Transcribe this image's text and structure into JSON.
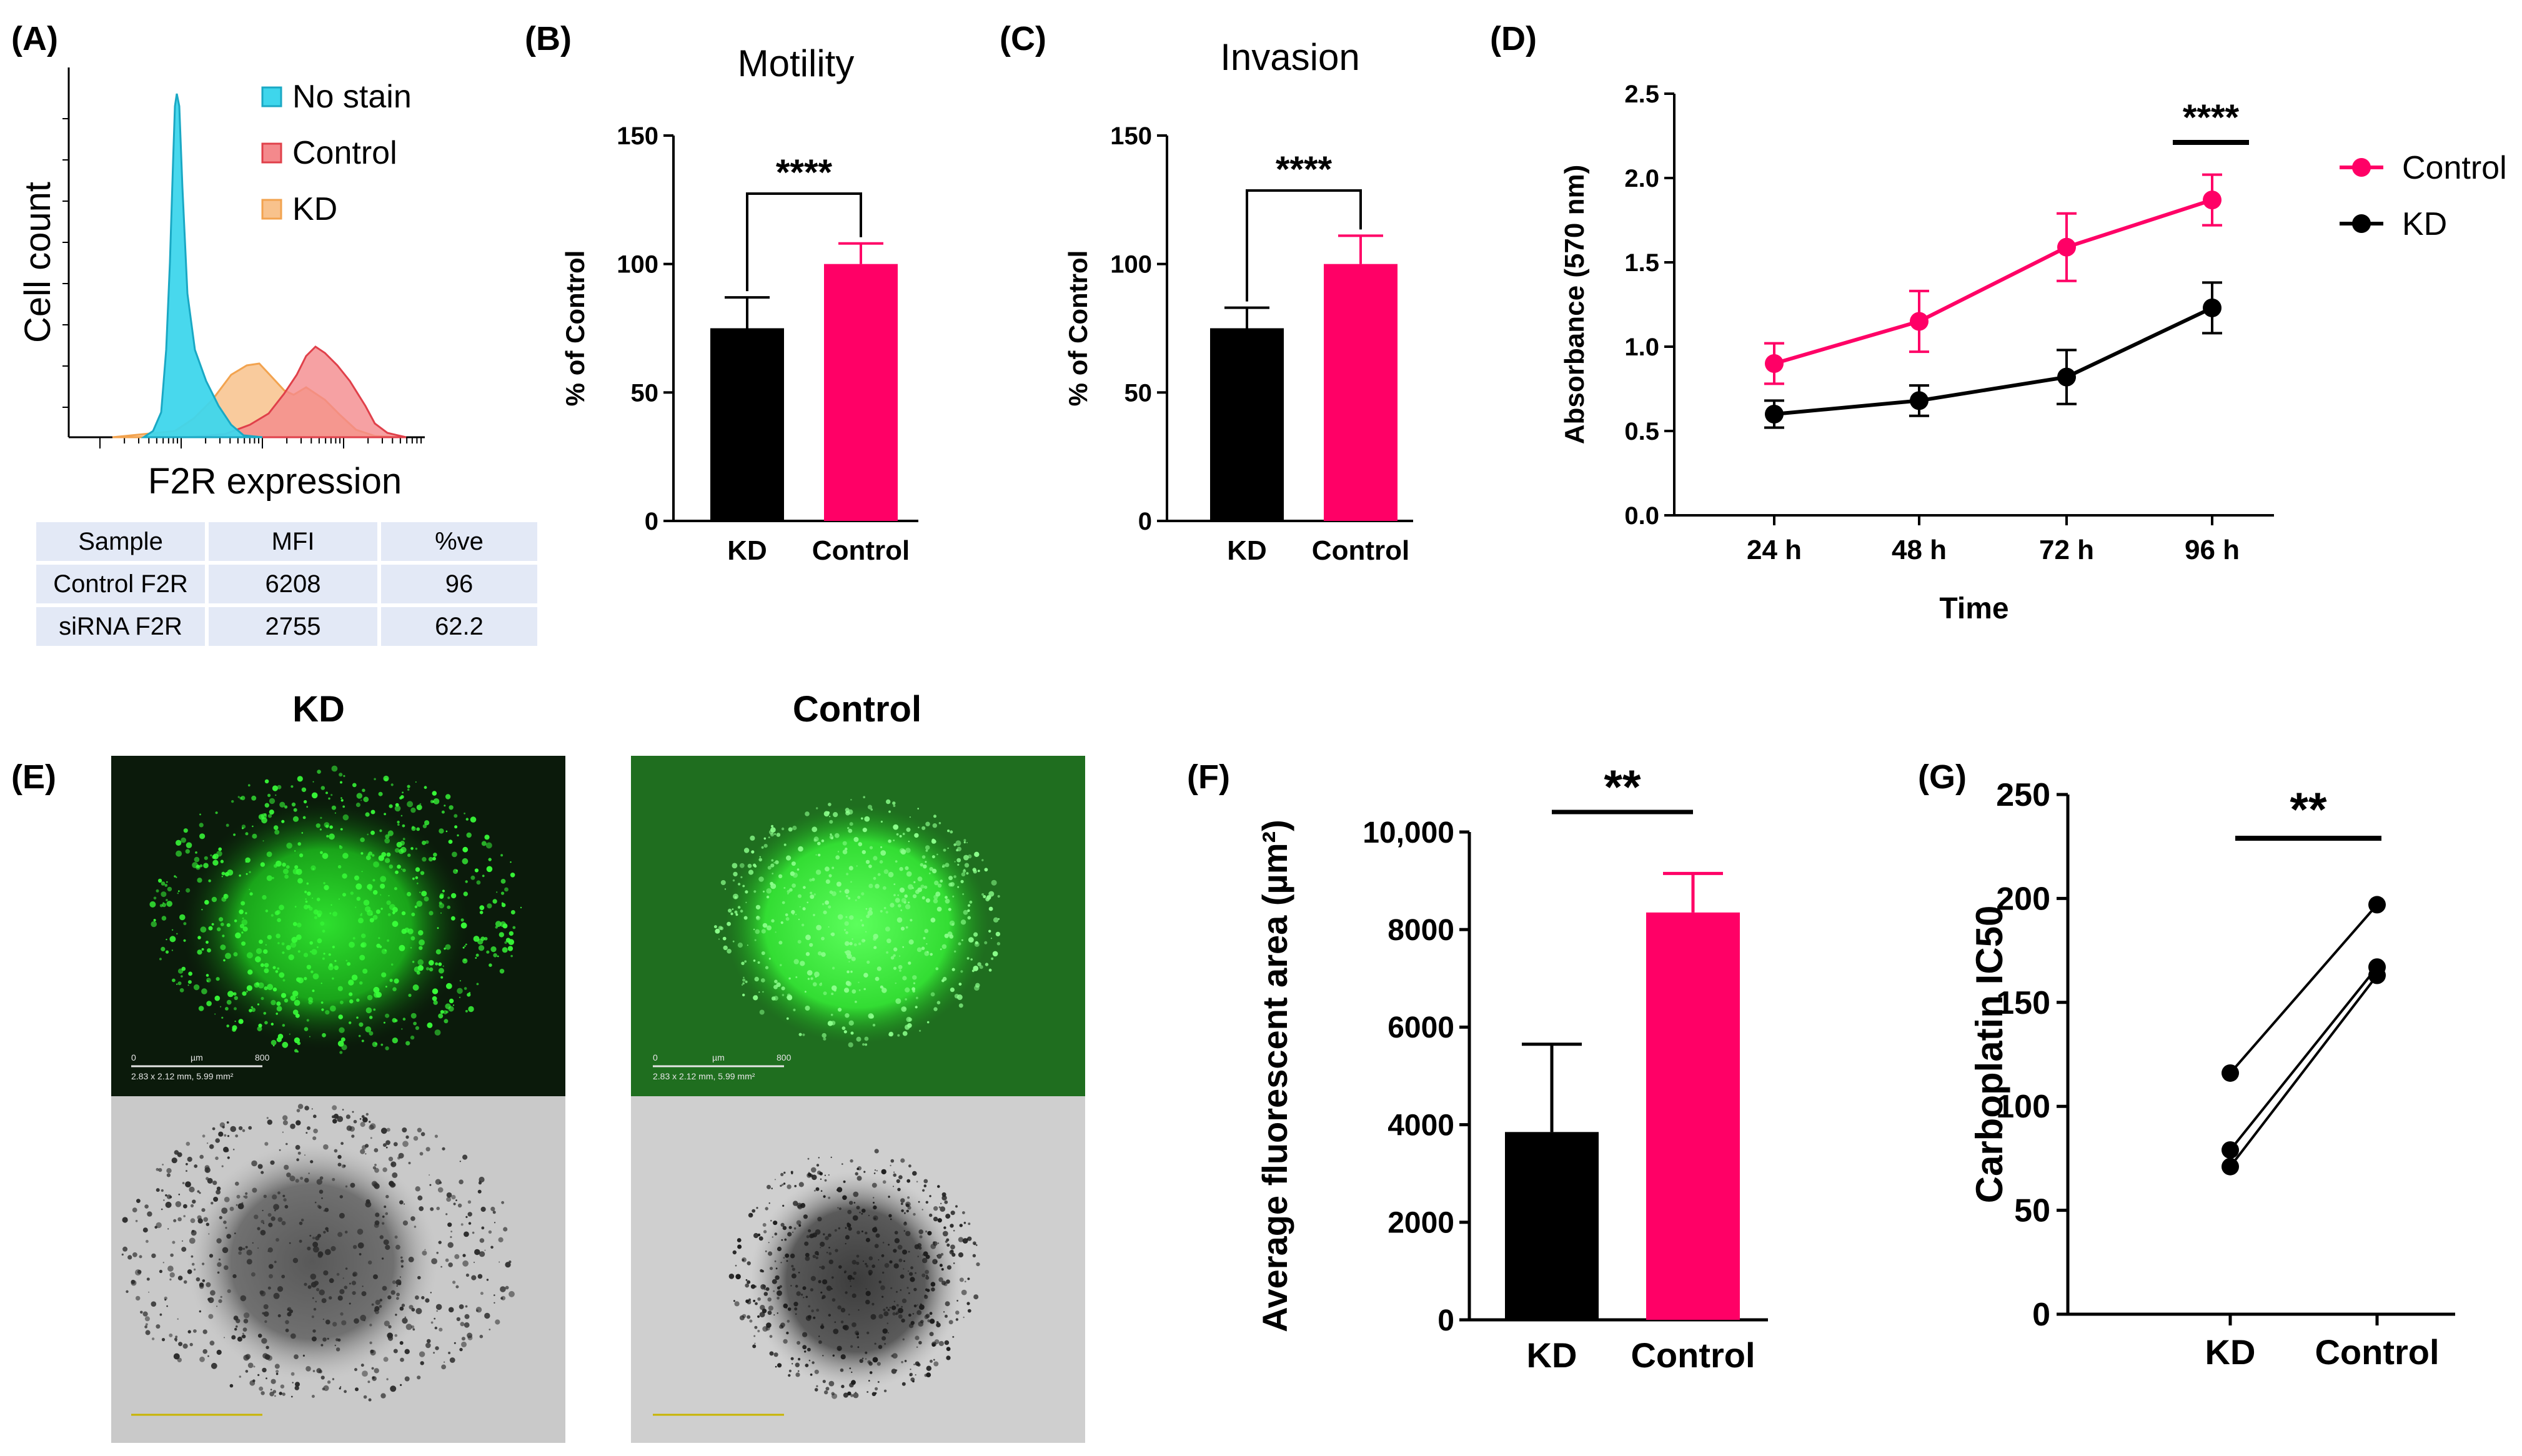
{
  "panels": {
    "A": {
      "label": "(A)",
      "xlabel": "F2R expression",
      "ylabel": "Cell count",
      "legend": [
        {
          "name": "No stain",
          "color": "#3ed6ec"
        },
        {
          "name": "Control",
          "color": "#f4898c"
        },
        {
          "name": "KD",
          "color": "#f8c28c"
        }
      ],
      "table": {
        "headers": [
          "Sample",
          "MFI",
          "%ve"
        ],
        "rows": [
          [
            "Control F2R",
            "6208",
            "96"
          ],
          [
            "siRNA F2R",
            "2755",
            "62.2"
          ]
        ]
      }
    },
    "B": {
      "label": "(B)"
    },
    "C": {
      "label": "(C)"
    },
    "D": {
      "label": "(D)"
    },
    "E": {
      "label": "(E)",
      "col_titles": [
        "KD",
        "Control"
      ],
      "scale_bar_ticks": [
        "0",
        "µm",
        "800"
      ],
      "scale_caption": "2.83 x 2.12 mm, 5.99 mm²"
    },
    "F": {
      "label": "(F)"
    },
    "G": {
      "label": "(G)"
    }
  },
  "chart_data": [
    {
      "panel": "B",
      "type": "bar",
      "title": "Motility",
      "ylabel": "% of Control",
      "categories": [
        "KD",
        "Control"
      ],
      "values": [
        75,
        100
      ],
      "errors": [
        12,
        8
      ],
      "colors": [
        "#000000",
        "#ff0066"
      ],
      "ylim": [
        0,
        150
      ],
      "yticks": [
        0,
        50,
        100,
        150
      ],
      "significance": "****"
    },
    {
      "panel": "C",
      "type": "bar",
      "title": "Invasion",
      "ylabel": "% of Control",
      "categories": [
        "KD",
        "Control"
      ],
      "values": [
        75,
        100
      ],
      "errors": [
        8,
        11
      ],
      "colors": [
        "#000000",
        "#ff0066"
      ],
      "ylim": [
        0,
        150
      ],
      "yticks": [
        0,
        50,
        100,
        150
      ],
      "significance": "****"
    },
    {
      "panel": "D",
      "type": "line",
      "xlabel": "Time",
      "ylabel": "Absorbance (570 nm)",
      "categories": [
        "24 h",
        "48 h",
        "72 h",
        "96 h"
      ],
      "series": [
        {
          "name": "Control",
          "color": "#ff0066",
          "values": [
            0.9,
            1.15,
            1.59,
            1.87
          ],
          "errors": [
            0.12,
            0.18,
            0.2,
            0.15
          ]
        },
        {
          "name": "KD",
          "color": "#000000",
          "values": [
            0.6,
            0.68,
            0.82,
            1.23
          ],
          "errors": [
            0.08,
            0.09,
            0.16,
            0.15
          ]
        }
      ],
      "ylim": [
        0,
        2.5
      ],
      "yticks": [
        "0.0",
        "0.5",
        "1.0",
        "1.5",
        "2.0",
        "2.5"
      ],
      "significance": "****",
      "legend": "right"
    },
    {
      "panel": "F",
      "type": "bar",
      "ylabel": "Average fluorescent area (µm²)",
      "categories": [
        "KD",
        "Control"
      ],
      "values": [
        3850,
        8350
      ],
      "errors": [
        1800,
        800
      ],
      "colors": [
        "#000000",
        "#ff0066"
      ],
      "ylim": [
        0,
        10000
      ],
      "yticks": [
        "0",
        "2000",
        "4000",
        "6000",
        "8000",
        "10,000"
      ],
      "significance": "**"
    },
    {
      "panel": "G",
      "type": "scatter",
      "ylabel": "Carboplatin IC50",
      "categories": [
        "KD",
        "Control"
      ],
      "pairs": [
        [
          116,
          197
        ],
        [
          79,
          167
        ],
        [
          71,
          163
        ]
      ],
      "ylim": [
        0,
        250
      ],
      "yticks": [
        0,
        50,
        100,
        150,
        200,
        250
      ],
      "significance": "**"
    }
  ]
}
